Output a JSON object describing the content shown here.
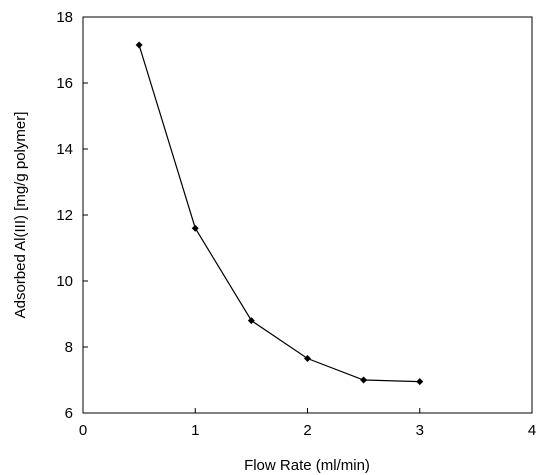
{
  "chart_data": {
    "type": "line",
    "title": "",
    "xlabel": "Flow Rate (ml/min)",
    "ylabel": "Adsorbed Al(III) [mg/g polymer]",
    "xlim": [
      0,
      4
    ],
    "ylim": [
      6,
      18
    ],
    "x_ticks": [
      0,
      1,
      2,
      3,
      4
    ],
    "y_ticks": [
      6,
      8,
      10,
      12,
      14,
      16,
      18
    ],
    "grid": false,
    "legend": "none",
    "series": [
      {
        "x": [
          0.5,
          1.0,
          1.5,
          2.0,
          2.5,
          3.0
        ],
        "y": [
          17.15,
          11.6,
          8.8,
          7.65,
          7.0,
          6.95
        ]
      }
    ],
    "colors": {
      "line": "#000000",
      "marker": "#000000",
      "axis": "#000000"
    },
    "marker": "diamond"
  }
}
